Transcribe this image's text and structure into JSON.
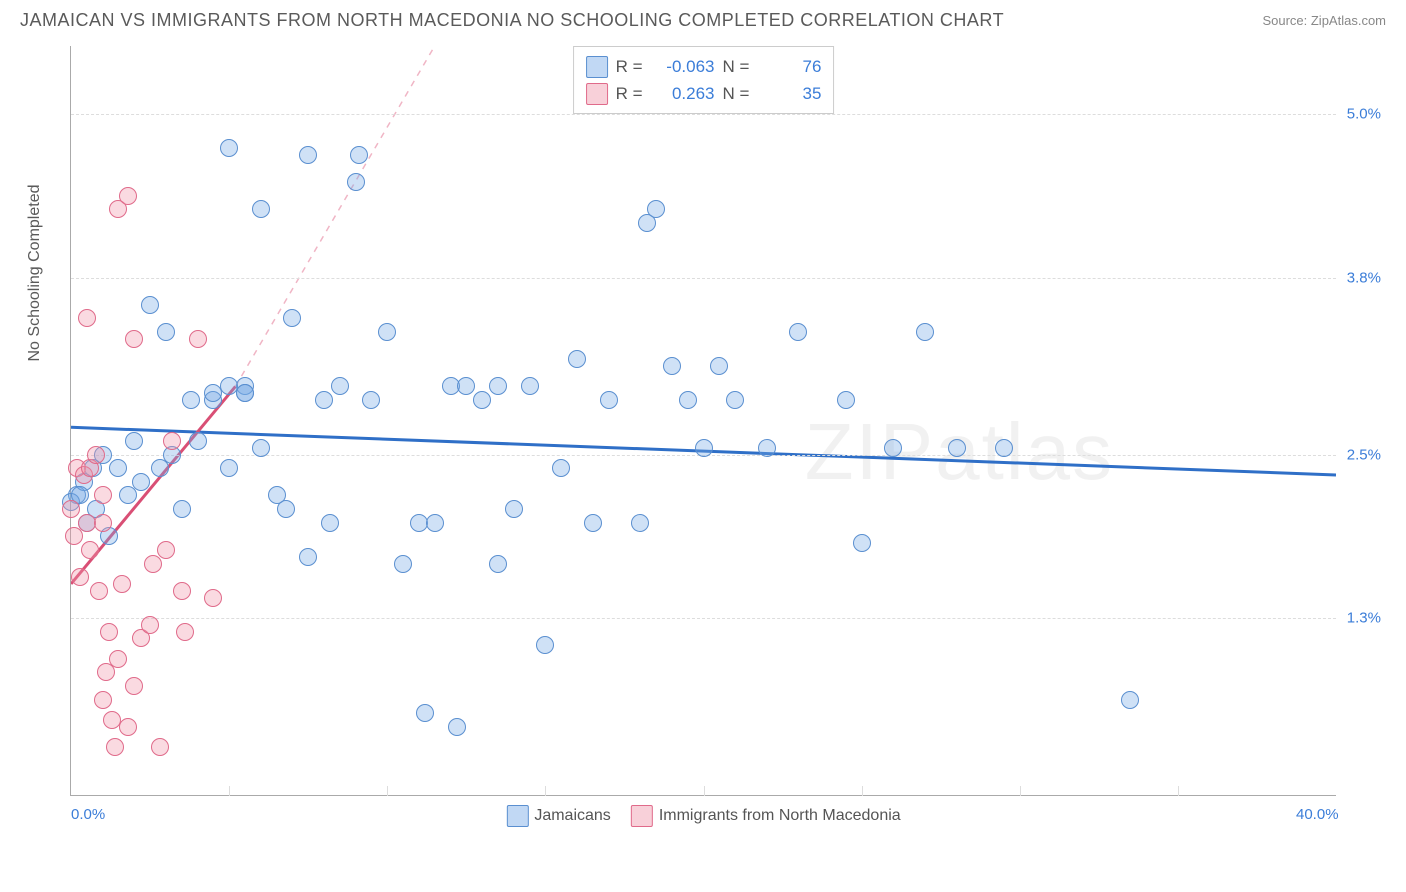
{
  "title": "JAMAICAN VS IMMIGRANTS FROM NORTH MACEDONIA NO SCHOOLING COMPLETED CORRELATION CHART",
  "source": "Source: ZipAtlas.com",
  "watermark": "ZIPatlas",
  "chart": {
    "type": "scatter",
    "ylabel": "No Schooling Completed",
    "xlim": [
      0,
      40
    ],
    "ylim": [
      0,
      5.5
    ],
    "yticks": [
      {
        "v": 1.3,
        "label": "1.3%"
      },
      {
        "v": 2.5,
        "label": "2.5%"
      },
      {
        "v": 3.8,
        "label": "3.8%"
      },
      {
        "v": 5.0,
        "label": "5.0%"
      }
    ],
    "xticks_major": [
      5,
      10,
      15,
      20,
      25,
      30,
      35
    ],
    "xlabels": [
      {
        "v": 0,
        "label": "0.0%"
      },
      {
        "v": 40,
        "label": "40.0%"
      }
    ],
    "background_color": "#ffffff",
    "grid_color": "#dddddd",
    "marker_size": 18,
    "series": [
      {
        "name": "Jamaicans",
        "color_fill": "rgba(117,169,230,0.35)",
        "color_stroke": "#5a8fd0",
        "R": "-0.063",
        "N": "76",
        "trend": {
          "x1": 0,
          "y1": 2.7,
          "x2": 40,
          "y2": 2.35,
          "color": "#2f6fc7",
          "width": 3,
          "dash": "none"
        },
        "points": [
          [
            0.2,
            2.2
          ],
          [
            0.4,
            2.3
          ],
          [
            0.5,
            2.0
          ],
          [
            0.7,
            2.4
          ],
          [
            0.8,
            2.1
          ],
          [
            1.0,
            2.5
          ],
          [
            1.2,
            1.9
          ],
          [
            1.5,
            2.4
          ],
          [
            1.8,
            2.2
          ],
          [
            2.0,
            2.6
          ],
          [
            2.2,
            2.3
          ],
          [
            2.5,
            3.6
          ],
          [
            2.8,
            2.4
          ],
          [
            3.0,
            3.4
          ],
          [
            3.2,
            2.5
          ],
          [
            3.5,
            2.1
          ],
          [
            3.8,
            2.9
          ],
          [
            4.0,
            2.6
          ],
          [
            4.5,
            2.9
          ],
          [
            5.0,
            2.4
          ],
          [
            5.5,
            3.0
          ],
          [
            6.0,
            4.3
          ],
          [
            6.5,
            2.2
          ],
          [
            7.0,
            3.5
          ],
          [
            7.5,
            4.7
          ],
          [
            8.0,
            2.9
          ],
          [
            8.2,
            2.0
          ],
          [
            8.5,
            3.0
          ],
          [
            9.0,
            4.5
          ],
          [
            9.1,
            4.7
          ],
          [
            9.5,
            2.9
          ],
          [
            10.0,
            3.4
          ],
          [
            10.5,
            1.7
          ],
          [
            11.0,
            2.0
          ],
          [
            11.2,
            0.6
          ],
          [
            11.5,
            2.0
          ],
          [
            12.0,
            3.0
          ],
          [
            12.2,
            0.5
          ],
          [
            12.5,
            3.0
          ],
          [
            13.0,
            2.9
          ],
          [
            13.5,
            1.7
          ],
          [
            14.0,
            2.1
          ],
          [
            14.5,
            3.0
          ],
          [
            15.0,
            1.1
          ],
          [
            15.5,
            2.4
          ],
          [
            16.0,
            3.2
          ],
          [
            16.5,
            2.0
          ],
          [
            17.0,
            2.9
          ],
          [
            18.0,
            2.0
          ],
          [
            18.2,
            4.2
          ],
          [
            18.5,
            4.3
          ],
          [
            19.0,
            3.15
          ],
          [
            19.5,
            2.9
          ],
          [
            20.0,
            2.55
          ],
          [
            20.5,
            3.15
          ],
          [
            21.0,
            2.9
          ],
          [
            22.0,
            2.55
          ],
          [
            23.0,
            3.4
          ],
          [
            24.5,
            2.9
          ],
          [
            25.0,
            1.85
          ],
          [
            26.0,
            2.55
          ],
          [
            27.0,
            3.4
          ],
          [
            28.0,
            2.55
          ],
          [
            29.5,
            2.55
          ],
          [
            33.5,
            0.7
          ],
          [
            13.5,
            3.0
          ],
          [
            4.5,
            2.95
          ],
          [
            5.0,
            3.0
          ],
          [
            5.5,
            2.95
          ],
          [
            6.0,
            2.55
          ],
          [
            5.0,
            4.75
          ],
          [
            5.5,
            2.95
          ],
          [
            6.8,
            2.1
          ],
          [
            7.5,
            1.75
          ],
          [
            0.0,
            2.15
          ],
          [
            0.3,
            2.2
          ]
        ]
      },
      {
        "name": "Immigrants from North Macedonia",
        "color_fill": "rgba(240,150,170,0.35)",
        "color_stroke": "#e06a8a",
        "R": "0.263",
        "N": "35",
        "trend_solid": {
          "x1": 0,
          "y1": 1.55,
          "x2": 5.2,
          "y2": 3.0,
          "color": "#d94f75",
          "width": 3
        },
        "trend_dash": {
          "x1": 5.2,
          "y1": 3.0,
          "x2": 11.5,
          "y2": 5.5,
          "color": "#f0b5c5",
          "width": 1.5
        },
        "points": [
          [
            0.1,
            1.9
          ],
          [
            0.2,
            2.4
          ],
          [
            0.3,
            1.6
          ],
          [
            0.4,
            2.35
          ],
          [
            0.5,
            2.0
          ],
          [
            0.6,
            2.4
          ],
          [
            0.6,
            1.8
          ],
          [
            0.8,
            2.5
          ],
          [
            0.9,
            1.5
          ],
          [
            1.0,
            2.0
          ],
          [
            1.0,
            0.7
          ],
          [
            1.1,
            0.9
          ],
          [
            1.2,
            1.2
          ],
          [
            1.3,
            0.55
          ],
          [
            1.4,
            0.35
          ],
          [
            1.5,
            1.0
          ],
          [
            1.5,
            4.3
          ],
          [
            1.6,
            1.55
          ],
          [
            1.8,
            4.4
          ],
          [
            1.8,
            0.5
          ],
          [
            2.0,
            0.8
          ],
          [
            2.0,
            3.35
          ],
          [
            2.2,
            1.15
          ],
          [
            2.5,
            1.25
          ],
          [
            2.6,
            1.7
          ],
          [
            2.8,
            0.35
          ],
          [
            3.0,
            1.8
          ],
          [
            3.2,
            2.6
          ],
          [
            3.5,
            1.5
          ],
          [
            3.6,
            1.2
          ],
          [
            4.0,
            3.35
          ],
          [
            4.5,
            1.45
          ],
          [
            0.0,
            2.1
          ],
          [
            0.5,
            3.5
          ],
          [
            1.0,
            2.2
          ]
        ]
      }
    ],
    "legend_top": [
      {
        "swatch": "blue",
        "R_label": "R =",
        "R": "-0.063",
        "N_label": "N =",
        "N": "76"
      },
      {
        "swatch": "pink",
        "R_label": "R =",
        "R": "0.263",
        "N_label": "N =",
        "N": "35"
      }
    ],
    "legend_bottom": [
      {
        "swatch": "blue",
        "label": "Jamaicans"
      },
      {
        "swatch": "pink",
        "label": "Immigrants from North Macedonia"
      }
    ]
  }
}
